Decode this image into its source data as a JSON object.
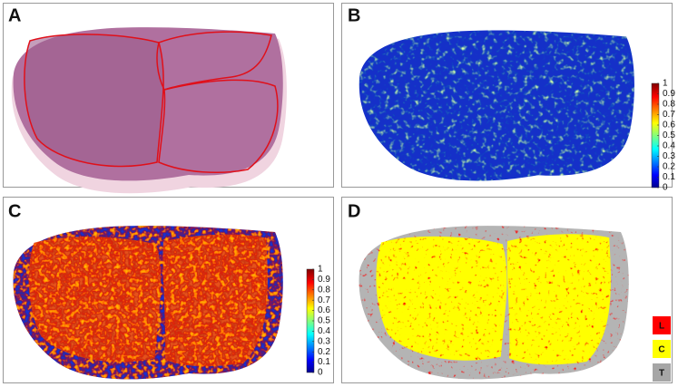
{
  "panels": [
    {
      "label": "A"
    },
    {
      "label": "B",
      "colorbar": {
        "ticks": [
          0,
          0.1,
          0.2,
          0.3,
          0.4,
          0.5,
          0.6,
          0.7,
          0.8,
          0.9,
          1
        ]
      }
    },
    {
      "label": "C",
      "colorbar": {
        "ticks": [
          0,
          0.1,
          0.2,
          0.3,
          0.4,
          0.5,
          0.6,
          0.7,
          0.8,
          0.9,
          1
        ]
      }
    },
    {
      "label": "D",
      "legend": [
        {
          "label": "L",
          "color": "#ff0000"
        },
        {
          "label": "C",
          "color": "#ffff00"
        },
        {
          "label": "T",
          "color": "#a6a6a6"
        }
      ]
    }
  ]
}
